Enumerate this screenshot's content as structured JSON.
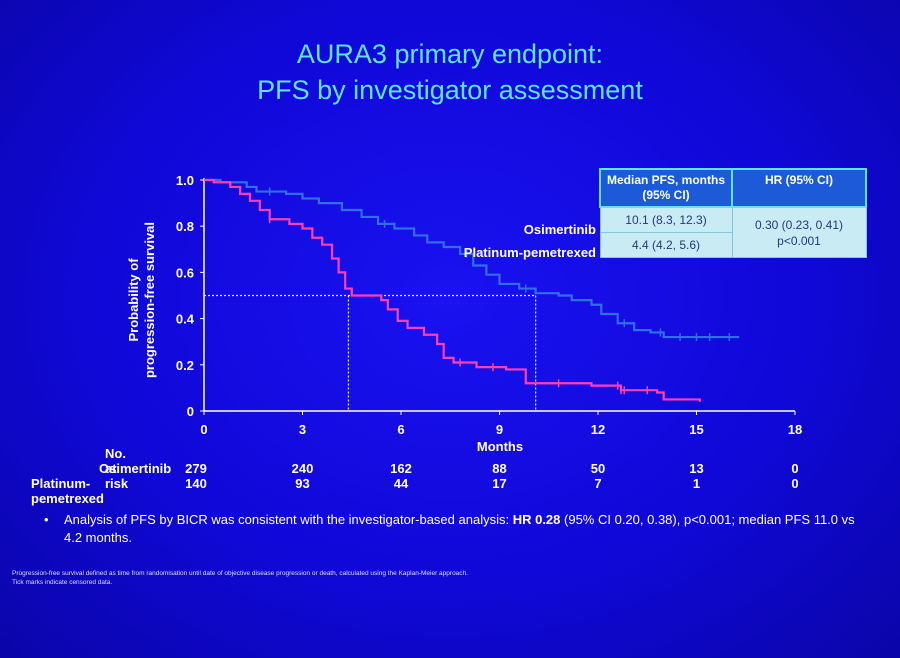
{
  "title": {
    "line1": "AURA3 primary endpoint:",
    "line2": "PFS by investigator assessment"
  },
  "colors": {
    "background": "#1008d8",
    "title": "#5fe3f5",
    "osimertinib": "#2f6fe8",
    "platinum": "#ff3fb0",
    "table_header": "#1d5ad8",
    "table_cell": "#c9ecf4"
  },
  "chart_data": {
    "type": "line",
    "title": "",
    "xlabel": "Months",
    "ylabel_line1": "Probability of",
    "ylabel_line2": "progression-free survival",
    "xlim": [
      0,
      18
    ],
    "ylim": [
      0,
      1.0
    ],
    "x_ticks": [
      0,
      3,
      6,
      9,
      12,
      15,
      18
    ],
    "y_ticks": [
      0,
      0.2,
      0.4,
      0.6,
      0.8,
      1.0
    ],
    "y_tick_labels": [
      "0",
      "0.2",
      "0.4",
      "0.6",
      "0.8",
      "1.0"
    ],
    "median_reference_y": 0.5,
    "series": [
      {
        "name": "Osimertinib",
        "color": "#2f6fe8",
        "median": 10.1,
        "steps": [
          [
            0,
            1.0
          ],
          [
            0.5,
            0.99
          ],
          [
            1.3,
            0.97
          ],
          [
            1.6,
            0.95
          ],
          [
            2.5,
            0.94
          ],
          [
            3.0,
            0.92
          ],
          [
            3.5,
            0.9
          ],
          [
            4.2,
            0.87
          ],
          [
            4.8,
            0.84
          ],
          [
            5.3,
            0.81
          ],
          [
            5.8,
            0.79
          ],
          [
            6.4,
            0.76
          ],
          [
            6.8,
            0.73
          ],
          [
            7.3,
            0.71
          ],
          [
            7.8,
            0.68
          ],
          [
            8.2,
            0.63
          ],
          [
            8.6,
            0.59
          ],
          [
            9.0,
            0.55
          ],
          [
            9.6,
            0.53
          ],
          [
            10.1,
            0.51
          ],
          [
            10.8,
            0.5
          ],
          [
            11.2,
            0.48
          ],
          [
            11.8,
            0.46
          ],
          [
            12.1,
            0.42
          ],
          [
            12.6,
            0.38
          ],
          [
            13.1,
            0.35
          ],
          [
            13.6,
            0.34
          ],
          [
            14.0,
            0.32
          ],
          [
            16.3,
            0.32
          ]
        ],
        "censor": [
          2.0,
          5.5,
          8.0,
          9.8,
          12.8,
          13.9,
          14.5,
          15.0,
          15.4,
          16.0
        ]
      },
      {
        "name": "Platinum-pemetrexed",
        "color": "#ff3fb0",
        "median": 4.4,
        "steps": [
          [
            0,
            1.0
          ],
          [
            0.3,
            0.99
          ],
          [
            0.8,
            0.97
          ],
          [
            1.1,
            0.94
          ],
          [
            1.4,
            0.91
          ],
          [
            1.7,
            0.87
          ],
          [
            2.0,
            0.83
          ],
          [
            2.6,
            0.81
          ],
          [
            3.0,
            0.79
          ],
          [
            3.3,
            0.75
          ],
          [
            3.6,
            0.72
          ],
          [
            3.9,
            0.66
          ],
          [
            4.1,
            0.6
          ],
          [
            4.3,
            0.53
          ],
          [
            4.5,
            0.5
          ],
          [
            5.4,
            0.48
          ],
          [
            5.6,
            0.44
          ],
          [
            5.9,
            0.39
          ],
          [
            6.2,
            0.36
          ],
          [
            6.7,
            0.33
          ],
          [
            7.1,
            0.29
          ],
          [
            7.3,
            0.23
          ],
          [
            7.6,
            0.21
          ],
          [
            8.3,
            0.19
          ],
          [
            9.2,
            0.18
          ],
          [
            9.8,
            0.12
          ],
          [
            11.8,
            0.11
          ],
          [
            12.7,
            0.09
          ],
          [
            13.8,
            0.08
          ],
          [
            14.0,
            0.05
          ],
          [
            15.1,
            0.04
          ]
        ],
        "censor": [
          2.0,
          7.8,
          8.8,
          10.8,
          12.6,
          12.7,
          12.8,
          13.5
        ]
      }
    ]
  },
  "risk_table": {
    "header": "No. at risk",
    "rows": [
      {
        "label": "Osimertinib",
        "first": "279",
        "values": [
          "240",
          "162",
          "88",
          "50",
          "13",
          "0"
        ]
      },
      {
        "label": "Platinum-pemetrexed",
        "first": "140",
        "values": [
          "93",
          "44",
          "17",
          "7",
          "1",
          "0"
        ]
      }
    ]
  },
  "hr_table": {
    "col1_header": "Median PFS, months (95% CI)",
    "col2_header": "HR (95% CI)",
    "rows": [
      {
        "label": "Osimertinib",
        "median": "10.1 (8.3, 12.3)"
      },
      {
        "label": "Platinum-pemetrexed",
        "median": "4.4 (4.2, 5.6)"
      }
    ],
    "hr_value": "0.30 (0.23, 0.41)",
    "p_value": "p<0.001"
  },
  "bullet": {
    "symbol": "•",
    "text_before": "Analysis of PFS by BICR was consistent with the investigator-based analysis: ",
    "hr_bold": "HR 0.28",
    "text_after": " (95% CI 0.20, 0.38), p<0.001; median PFS 11.0 vs 4.2 months."
  },
  "footnote": {
    "line1": "Progression-free survival defined as time from randomisation until date of objective disease progression or death, calculated using the Kaplan-Meier approach.",
    "line2": "Tick marks indicate censored data."
  }
}
